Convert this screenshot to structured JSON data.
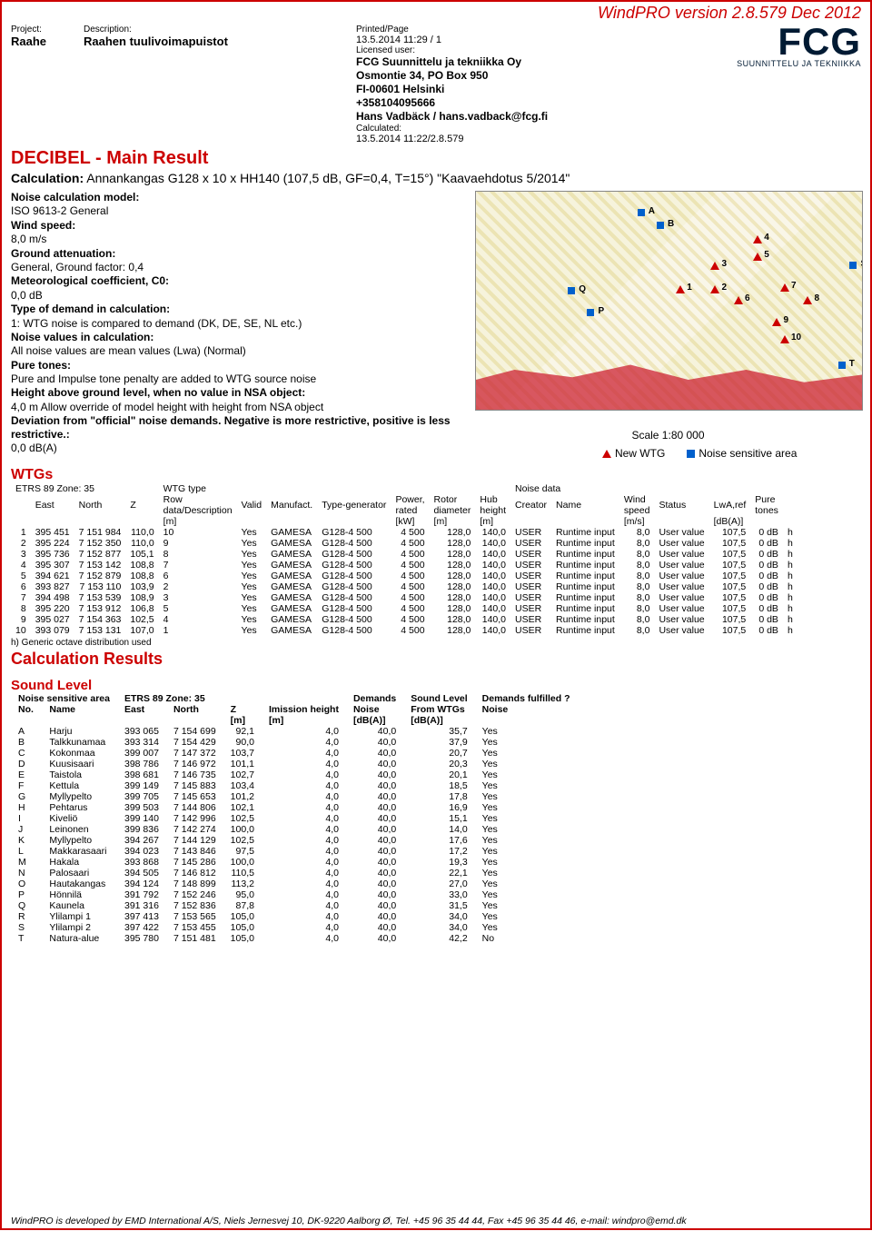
{
  "topbar": "WindPRO version 2.8.579  Dec 2012",
  "header": {
    "project_label": "Project:",
    "project": "Raahe",
    "desc_label": "Description:",
    "desc": "Raahen tuulivoimapuistot",
    "printed_label": "Printed/Page",
    "printed": "13.5.2014 11:29 / 1",
    "licensed_label": "Licensed user:",
    "lic1": "FCG Suunnittelu ja tekniikka Oy",
    "lic2": "Osmontie 34, PO Box 950",
    "lic3": "FI-00601 Helsinki",
    "lic4": "+358104095666",
    "lic5": "Hans Vadbäck / hans.vadback@fcg.fi",
    "calc_label": "Calculated:",
    "calc": "13.5.2014 11:22/2.8.579"
  },
  "logo": {
    "main": "FCG",
    "sub": "SUUNNITTELU JA TEKNIIKKA"
  },
  "section_title": "DECIBEL - Main Result",
  "calc_line_label": "Calculation:",
  "calc_line": "Annankangas G128 x 10 x HH140 (107,5 dB, GF=0,4, T=15°) \"Kaavaehdotus 5/2014\"",
  "params": {
    "l1b": "Noise calculation model:",
    "l1": "ISO 9613-2 General",
    "l2b": "Wind speed:",
    "l2": "8,0 m/s",
    "l3b": "Ground attenuation:",
    "l3": "General, Ground factor: 0,4",
    "l4b": "Meteorological coefficient, C0:",
    "l4": "0,0 dB",
    "l5b": "Type of demand in calculation:",
    "l5": "1: WTG noise is compared to demand (DK, DE, SE, NL etc.)",
    "l6b": "Noise values in calculation:",
    "l6": "All noise values are mean values (Lwa) (Normal)",
    "l7b": "Pure tones:",
    "l7": "Pure and Impulse tone penalty are added to WTG source noise",
    "l8b": "Height above ground level, when no value in NSA object:",
    "l8": "4,0 m Allow override of model height with height from NSA object",
    "l9b": "Deviation from \"official\" noise demands. Negative is more restrictive, positive is less restrictive.:",
    "l9": "0,0 dB(A)"
  },
  "legend": {
    "new_wtg": "New WTG",
    "nsa": "Noise sensitive area",
    "scale": "Scale 1:80 000"
  },
  "map_points_wtg": [
    {
      "lbl": "1",
      "x": 53,
      "y": 45
    },
    {
      "lbl": "2",
      "x": 62,
      "y": 45
    },
    {
      "lbl": "3",
      "x": 62,
      "y": 34
    },
    {
      "lbl": "4",
      "x": 73,
      "y": 22
    },
    {
      "lbl": "5",
      "x": 73,
      "y": 30
    },
    {
      "lbl": "6",
      "x": 68,
      "y": 50
    },
    {
      "lbl": "7",
      "x": 80,
      "y": 44
    },
    {
      "lbl": "8",
      "x": 86,
      "y": 50
    },
    {
      "lbl": "9",
      "x": 78,
      "y": 60
    },
    {
      "lbl": "10",
      "x": 80,
      "y": 68
    }
  ],
  "map_points_nsa": [
    {
      "lbl": "A",
      "x": 43,
      "y": 10
    },
    {
      "lbl": "B",
      "x": 48,
      "y": 16
    },
    {
      "lbl": "P",
      "x": 30,
      "y": 56
    },
    {
      "lbl": "Q",
      "x": 25,
      "y": 46
    },
    {
      "lbl": "S",
      "x": 98,
      "y": 34
    },
    {
      "lbl": "T",
      "x": 95,
      "y": 80
    }
  ],
  "wtgs_title": "WTGs",
  "wtg_headers": {
    "etrs": "ETRS 89 Zone: 35",
    "wtg_type": "WTG type",
    "noise_data": "Noise data",
    "east": "East",
    "north": "North",
    "z": "Z",
    "row": "Row\ndata/Description",
    "valid": "Valid",
    "manuf": "Manufact.",
    "type": "Type-generator",
    "power": "Power,\nrated",
    "rotor": "Rotor\ndiameter",
    "hub": "Hub\nheight",
    "creator": "Creator",
    "name": "Name",
    "wind": "Wind\nspeed",
    "status": "Status",
    "lwa": "LwA,ref",
    "pure": "Pure\ntones",
    "u_m": "[m]",
    "u_kw": "[kW]",
    "u_ms": "[m/s]",
    "u_db": "[dB(A)]"
  },
  "wtg_rows": [
    {
      "n": "1",
      "east": "395 451",
      "north": "7 151 984",
      "z": "110,0",
      "row": "10",
      "valid": "Yes",
      "man": "GAMESA",
      "type": "G128-4 500",
      "pow": "4 500",
      "rot": "128,0",
      "hub": "140,0",
      "cre": "USER",
      "name": "Runtime input",
      "ws": "8,0",
      "st": "User value",
      "lwa": "107,5",
      "pt": "0 dB",
      "h": "h"
    },
    {
      "n": "2",
      "east": "395 224",
      "north": "7 152 350",
      "z": "110,0",
      "row": "9",
      "valid": "Yes",
      "man": "GAMESA",
      "type": "G128-4 500",
      "pow": "4 500",
      "rot": "128,0",
      "hub": "140,0",
      "cre": "USER",
      "name": "Runtime input",
      "ws": "8,0",
      "st": "User value",
      "lwa": "107,5",
      "pt": "0 dB",
      "h": "h"
    },
    {
      "n": "3",
      "east": "395 736",
      "north": "7 152 877",
      "z": "105,1",
      "row": "8",
      "valid": "Yes",
      "man": "GAMESA",
      "type": "G128-4 500",
      "pow": "4 500",
      "rot": "128,0",
      "hub": "140,0",
      "cre": "USER",
      "name": "Runtime input",
      "ws": "8,0",
      "st": "User value",
      "lwa": "107,5",
      "pt": "0 dB",
      "h": "h"
    },
    {
      "n": "4",
      "east": "395 307",
      "north": "7 153 142",
      "z": "108,8",
      "row": "7",
      "valid": "Yes",
      "man": "GAMESA",
      "type": "G128-4 500",
      "pow": "4 500",
      "rot": "128,0",
      "hub": "140,0",
      "cre": "USER",
      "name": "Runtime input",
      "ws": "8,0",
      "st": "User value",
      "lwa": "107,5",
      "pt": "0 dB",
      "h": "h"
    },
    {
      "n": "5",
      "east": "394 621",
      "north": "7 152 879",
      "z": "108,8",
      "row": "6",
      "valid": "Yes",
      "man": "GAMESA",
      "type": "G128-4 500",
      "pow": "4 500",
      "rot": "128,0",
      "hub": "140,0",
      "cre": "USER",
      "name": "Runtime input",
      "ws": "8,0",
      "st": "User value",
      "lwa": "107,5",
      "pt": "0 dB",
      "h": "h"
    },
    {
      "n": "6",
      "east": "393 827",
      "north": "7 153 110",
      "z": "103,9",
      "row": "2",
      "valid": "Yes",
      "man": "GAMESA",
      "type": "G128-4 500",
      "pow": "4 500",
      "rot": "128,0",
      "hub": "140,0",
      "cre": "USER",
      "name": "Runtime input",
      "ws": "8,0",
      "st": "User value",
      "lwa": "107,5",
      "pt": "0 dB",
      "h": "h"
    },
    {
      "n": "7",
      "east": "394 498",
      "north": "7 153 539",
      "z": "108,9",
      "row": "3",
      "valid": "Yes",
      "man": "GAMESA",
      "type": "G128-4 500",
      "pow": "4 500",
      "rot": "128,0",
      "hub": "140,0",
      "cre": "USER",
      "name": "Runtime input",
      "ws": "8,0",
      "st": "User value",
      "lwa": "107,5",
      "pt": "0 dB",
      "h": "h"
    },
    {
      "n": "8",
      "east": "395 220",
      "north": "7 153 912",
      "z": "106,8",
      "row": "5",
      "valid": "Yes",
      "man": "GAMESA",
      "type": "G128-4 500",
      "pow": "4 500",
      "rot": "128,0",
      "hub": "140,0",
      "cre": "USER",
      "name": "Runtime input",
      "ws": "8,0",
      "st": "User value",
      "lwa": "107,5",
      "pt": "0 dB",
      "h": "h"
    },
    {
      "n": "9",
      "east": "395 027",
      "north": "7 154 363",
      "z": "102,5",
      "row": "4",
      "valid": "Yes",
      "man": "GAMESA",
      "type": "G128-4 500",
      "pow": "4 500",
      "rot": "128,0",
      "hub": "140,0",
      "cre": "USER",
      "name": "Runtime input",
      "ws": "8,0",
      "st": "User value",
      "lwa": "107,5",
      "pt": "0 dB",
      "h": "h"
    },
    {
      "n": "10",
      "east": "393 079",
      "north": "7 153 131",
      "z": "107,0",
      "row": "1",
      "valid": "Yes",
      "man": "GAMESA",
      "type": "G128-4 500",
      "pow": "4 500",
      "rot": "128,0",
      "hub": "140,0",
      "cre": "USER",
      "name": "Runtime input",
      "ws": "8,0",
      "st": "User value",
      "lwa": "107,5",
      "pt": "0 dB",
      "h": "h"
    }
  ],
  "wtg_footnote": "h) Generic octave distribution used",
  "results_title": "Calculation Results",
  "sound_title": "Sound Level",
  "lvl_headers": {
    "nsa": "Noise sensitive area",
    "etrs": "ETRS 89 Zone: 35",
    "dem": "Demands",
    "sl": "Sound Level",
    "df": "Demands fulfilled ?",
    "no": "No.",
    "name": "Name",
    "east": "East",
    "north": "North",
    "z": "Z",
    "ih": "Imission height",
    "noise": "Noise",
    "from": "From WTGs",
    "noise2": "Noise",
    "u_m": "[m]",
    "u_db": "[dB(A)]"
  },
  "lvl_rows": [
    {
      "no": "A",
      "name": "Harju",
      "east": "393 065",
      "north": "7 154 699",
      "z": "92,1",
      "ih": "4,0",
      "dem": "40,0",
      "sl": "35,7",
      "df": "Yes"
    },
    {
      "no": "B",
      "name": "Talkkunamaa",
      "east": "393 314",
      "north": "7 154 429",
      "z": "90,0",
      "ih": "4,0",
      "dem": "40,0",
      "sl": "37,9",
      "df": "Yes"
    },
    {
      "no": "C",
      "name": "Kokonmaa",
      "east": "399 007",
      "north": "7 147 372",
      "z": "103,7",
      "ih": "4,0",
      "dem": "40,0",
      "sl": "20,7",
      "df": "Yes"
    },
    {
      "no": "D",
      "name": "Kuusisaari",
      "east": "398 786",
      "north": "7 146 972",
      "z": "101,1",
      "ih": "4,0",
      "dem": "40,0",
      "sl": "20,3",
      "df": "Yes"
    },
    {
      "no": "E",
      "name": "Taistola",
      "east": "398 681",
      "north": "7 146 735",
      "z": "102,7",
      "ih": "4,0",
      "dem": "40,0",
      "sl": "20,1",
      "df": "Yes"
    },
    {
      "no": "F",
      "name": "Kettula",
      "east": "399 149",
      "north": "7 145 883",
      "z": "103,4",
      "ih": "4,0",
      "dem": "40,0",
      "sl": "18,5",
      "df": "Yes"
    },
    {
      "no": "G",
      "name": "Myllypelto",
      "east": "399 705",
      "north": "7 145 653",
      "z": "101,2",
      "ih": "4,0",
      "dem": "40,0",
      "sl": "17,8",
      "df": "Yes"
    },
    {
      "no": "H",
      "name": "Pehtarus",
      "east": "399 503",
      "north": "7 144 806",
      "z": "102,1",
      "ih": "4,0",
      "dem": "40,0",
      "sl": "16,9",
      "df": "Yes"
    },
    {
      "no": "I",
      "name": "Kiveliö",
      "east": "399 140",
      "north": "7 142 996",
      "z": "102,5",
      "ih": "4,0",
      "dem": "40,0",
      "sl": "15,1",
      "df": "Yes"
    },
    {
      "no": "J",
      "name": "Leinonen",
      "east": "399 836",
      "north": "7 142 274",
      "z": "100,0",
      "ih": "4,0",
      "dem": "40,0",
      "sl": "14,0",
      "df": "Yes"
    },
    {
      "no": "K",
      "name": "Myllypelto",
      "east": "394 267",
      "north": "7 144 129",
      "z": "102,5",
      "ih": "4,0",
      "dem": "40,0",
      "sl": "17,6",
      "df": "Yes"
    },
    {
      "no": "L",
      "name": "Makkarasaari",
      "east": "394 023",
      "north": "7 143 846",
      "z": "97,5",
      "ih": "4,0",
      "dem": "40,0",
      "sl": "17,2",
      "df": "Yes"
    },
    {
      "no": "M",
      "name": "Hakala",
      "east": "393 868",
      "north": "7 145 286",
      "z": "100,0",
      "ih": "4,0",
      "dem": "40,0",
      "sl": "19,3",
      "df": "Yes"
    },
    {
      "no": "N",
      "name": "Palosaari",
      "east": "394 505",
      "north": "7 146 812",
      "z": "110,5",
      "ih": "4,0",
      "dem": "40,0",
      "sl": "22,1",
      "df": "Yes"
    },
    {
      "no": "O",
      "name": "Hautakangas",
      "east": "394 124",
      "north": "7 148 899",
      "z": "113,2",
      "ih": "4,0",
      "dem": "40,0",
      "sl": "27,0",
      "df": "Yes"
    },
    {
      "no": "P",
      "name": "Hönnilä",
      "east": "391 792",
      "north": "7 152 246",
      "z": "95,0",
      "ih": "4,0",
      "dem": "40,0",
      "sl": "33,0",
      "df": "Yes"
    },
    {
      "no": "Q",
      "name": "Kaunela",
      "east": "391 316",
      "north": "7 152 836",
      "z": "87,8",
      "ih": "4,0",
      "dem": "40,0",
      "sl": "31,5",
      "df": "Yes"
    },
    {
      "no": "R",
      "name": "Ylilampi 1",
      "east": "397 413",
      "north": "7 153 565",
      "z": "105,0",
      "ih": "4,0",
      "dem": "40,0",
      "sl": "34,0",
      "df": "Yes"
    },
    {
      "no": "S",
      "name": "Ylilampi 2",
      "east": "397 422",
      "north": "7 153 455",
      "z": "105,0",
      "ih": "4,0",
      "dem": "40,0",
      "sl": "34,0",
      "df": "Yes"
    },
    {
      "no": "T",
      "name": "Natura-alue",
      "east": "395 780",
      "north": "7 151 481",
      "z": "105,0",
      "ih": "4,0",
      "dem": "40,0",
      "sl": "42,2",
      "df": "No"
    }
  ],
  "footer": "WindPRO is developed by EMD International A/S, Niels Jernesvej 10, DK-9220 Aalborg Ø, Tel. +45 96 35 44 44, Fax +45 96 35 44 46, e-mail: windpro@emd.dk"
}
